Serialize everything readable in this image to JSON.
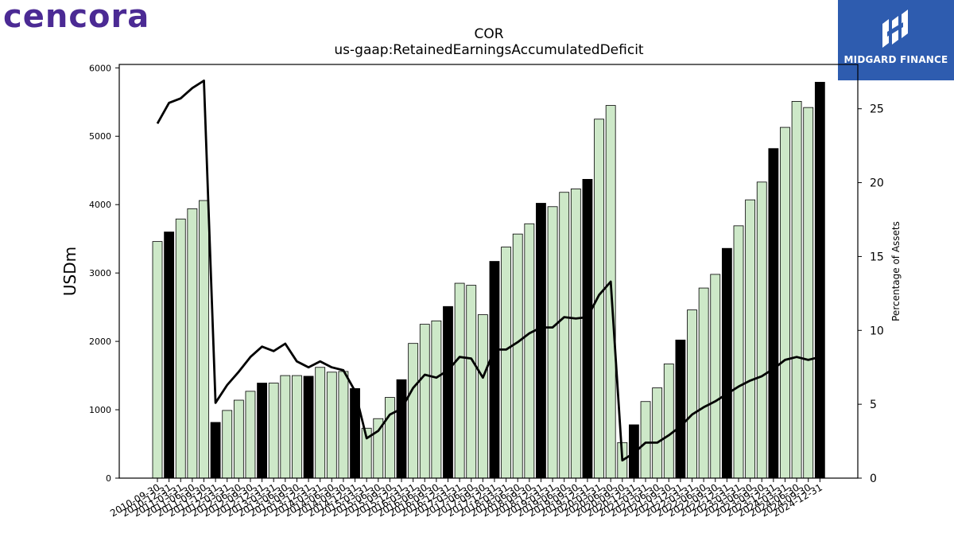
{
  "logos": {
    "left_text": "cencora",
    "right_text": "MIDGARD FINANCE"
  },
  "colors": {
    "bar_normal": "#cde8c8",
    "bar_highlight": "#000000",
    "line": "#000000",
    "brand_left": "#4b2a94",
    "brand_right": "#2e5caf"
  },
  "chart_data": {
    "type": "bar",
    "title": "COR",
    "subtitle": "us-gaap:RetainedEarningsAccumulatedDeficit",
    "ylabel": "USDm",
    "y2label": "Percentage of Assets",
    "ylim": [
      0,
      6050
    ],
    "y2lim": [
      0,
      28
    ],
    "yticks": [
      0,
      1000,
      2000,
      3000,
      4000,
      5000,
      6000
    ],
    "y2ticks": [
      0,
      5,
      10,
      15,
      20,
      25
    ],
    "categories": [
      "2010-09-30",
      "2010-12-31",
      "2011-03-31",
      "2011-06-30",
      "2011-09-30",
      "2011-12-31",
      "2012-03-31",
      "2012-06-30",
      "2012-09-30",
      "2012-12-31",
      "2013-03-31",
      "2013-06-30",
      "2013-09-30",
      "2013-12-31",
      "2014-03-31",
      "2014-06-30",
      "2014-09-30",
      "2014-12-31",
      "2015-03-31",
      "2015-06-30",
      "2015-09-30",
      "2015-12-31",
      "2016-03-31",
      "2016-06-30",
      "2016-09-30",
      "2016-12-31",
      "2017-03-31",
      "2017-06-30",
      "2017-09-30",
      "2017-12-31",
      "2018-03-31",
      "2018-06-30",
      "2018-09-30",
      "2018-12-31",
      "2019-03-31",
      "2019-06-30",
      "2019-09-30",
      "2019-12-31",
      "2020-03-31",
      "2020-06-30",
      "2020-09-30",
      "2020-12-31",
      "2021-03-31",
      "2021-06-30",
      "2021-09-30",
      "2021-12-31",
      "2022-03-31",
      "2022-06-30",
      "2022-09-30",
      "2022-12-31",
      "2023-03-31",
      "2023-06-30",
      "2023-09-30",
      "2023-12-31",
      "2024-03-31",
      "2024-06-30",
      "2024-09-30",
      "2024-12-31"
    ],
    "series": [
      {
        "values": [
          3460,
          3600,
          3790,
          3940,
          4060,
          815,
          990,
          1140,
          1270,
          1390,
          1390,
          1500,
          1500,
          1490,
          1620,
          1550,
          1560,
          1310,
          730,
          870,
          1180,
          1440,
          1970,
          2250,
          2300,
          2510,
          2850,
          2820,
          2390,
          3170,
          3380,
          3570,
          3720,
          4020,
          3970,
          4180,
          4230,
          4370,
          5250,
          5450,
          520,
          780,
          1120,
          1320,
          1670,
          2020,
          2460,
          2780,
          2980,
          3360,
          3690,
          4070,
          4330,
          4820,
          5130,
          5510,
          5420,
          5790
        ]
      },
      {
        "values": [
          24,
          25.4,
          25.7,
          26.4,
          26.9,
          5.1,
          6.3,
          7.2,
          8.2,
          8.9,
          8.6,
          9.1,
          7.9,
          7.5,
          7.9,
          7.5,
          7.3,
          5.9,
          2.7,
          3.2,
          4.3,
          4.7,
          6.1,
          7.0,
          6.8,
          7.3,
          8.2,
          8.1,
          6.8,
          8.7,
          8.7,
          9.2,
          9.8,
          10.2,
          10.2,
          10.9,
          10.8,
          10.9,
          12.4,
          13.3,
          1.2,
          1.7,
          2.4,
          2.4,
          2.9,
          3.5,
          4.3,
          4.8,
          5.2,
          5.7,
          6.2,
          6.6,
          6.9,
          7.4,
          8.0,
          8.2,
          8.0,
          8.2
        ]
      }
    ],
    "highlight_categories": [
      "2010-12-31",
      "2011-12-31",
      "2012-12-31",
      "2013-12-31",
      "2014-12-31",
      "2015-12-31",
      "2016-12-31",
      "2017-12-31",
      "2018-12-31",
      "2019-12-31",
      "2020-12-31",
      "2021-12-31",
      "2022-12-31",
      "2023-12-31",
      "2024-12-31"
    ],
    "grid": false
  }
}
